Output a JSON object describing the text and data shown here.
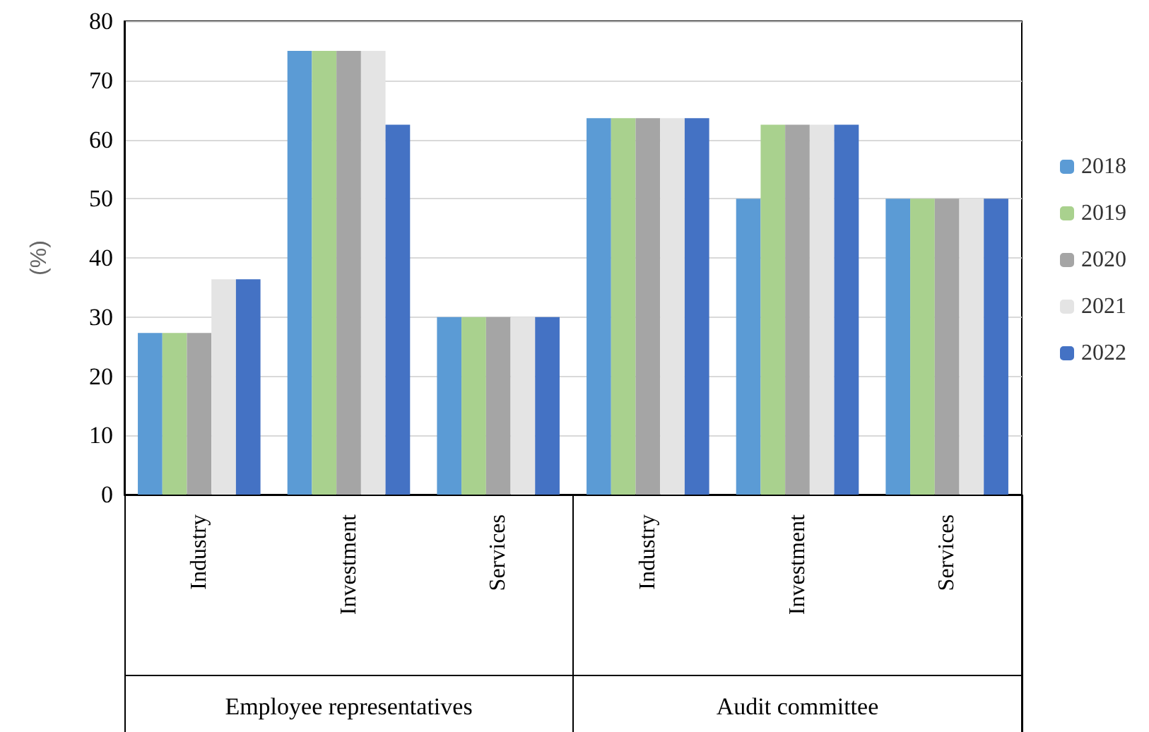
{
  "chart_data": {
    "type": "bar",
    "ylabel": "(%)",
    "categories": [
      "Industry",
      "Investment",
      "Services",
      "Industry",
      "Investment",
      "Services"
    ],
    "annotations": [
      "Employee representatives",
      "Audit committee"
    ],
    "series": [
      {
        "name": "2018",
        "color": "#5b9bd5",
        "values": [
          27.3,
          75,
          30,
          63.6,
          50,
          50
        ]
      },
      {
        "name": "2019",
        "color": "#a9d18e",
        "values": [
          27.3,
          75,
          30,
          63.6,
          62.5,
          50
        ]
      },
      {
        "name": "2020",
        "color": "#a5a5a5",
        "values": [
          27.3,
          75,
          30,
          63.6,
          62.5,
          50
        ]
      },
      {
        "name": "2021",
        "color": "#e4e4e4",
        "values": [
          36.4,
          75,
          30,
          63.6,
          62.5,
          50
        ]
      },
      {
        "name": "2022",
        "color": "#4472c4",
        "values": [
          36.4,
          62.5,
          30,
          63.6,
          62.5,
          50
        ]
      }
    ],
    "ylim": [
      0,
      80
    ],
    "yticks": [
      0,
      10,
      20,
      30,
      40,
      50,
      60,
      70,
      80
    ],
    "grid": "y",
    "legend": "right"
  }
}
